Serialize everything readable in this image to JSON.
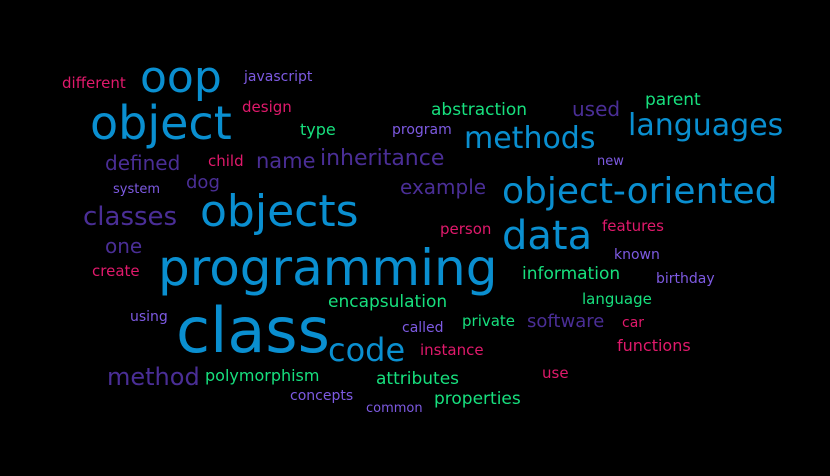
{
  "palette": {
    "background": "#000000",
    "blue": "#0a8fd0",
    "indigo": "#4a2e96",
    "green": "#17e07e",
    "pink": "#e0196b",
    "violet": "#7d5ae2"
  },
  "words": [
    {
      "text": "programming",
      "color": "blue"
    },
    {
      "text": "class",
      "color": "blue"
    },
    {
      "text": "objects",
      "color": "blue"
    },
    {
      "text": "object",
      "color": "blue"
    },
    {
      "text": "data",
      "color": "blue"
    },
    {
      "text": "oop",
      "color": "blue"
    },
    {
      "text": "object-oriented",
      "color": "blue"
    },
    {
      "text": "code",
      "color": "blue"
    },
    {
      "text": "methods",
      "color": "blue"
    },
    {
      "text": "languages",
      "color": "blue"
    },
    {
      "text": "classes",
      "color": "indigo"
    },
    {
      "text": "method",
      "color": "indigo"
    },
    {
      "text": "inheritance",
      "color": "indigo"
    },
    {
      "text": "name",
      "color": "indigo"
    },
    {
      "text": "defined",
      "color": "indigo"
    },
    {
      "text": "example",
      "color": "indigo"
    },
    {
      "text": "one",
      "color": "indigo"
    },
    {
      "text": "software",
      "color": "indigo"
    },
    {
      "text": "used",
      "color": "indigo"
    },
    {
      "text": "dog",
      "color": "indigo"
    },
    {
      "text": "abstraction",
      "color": "green"
    },
    {
      "text": "parent",
      "color": "green"
    },
    {
      "text": "type",
      "color": "green"
    },
    {
      "text": "information",
      "color": "green"
    },
    {
      "text": "language",
      "color": "green"
    },
    {
      "text": "encapsulation",
      "color": "green"
    },
    {
      "text": "private",
      "color": "green"
    },
    {
      "text": "polymorphism",
      "color": "green"
    },
    {
      "text": "attributes",
      "color": "green"
    },
    {
      "text": "properties",
      "color": "green"
    },
    {
      "text": "different",
      "color": "pink"
    },
    {
      "text": "design",
      "color": "pink"
    },
    {
      "text": "child",
      "color": "pink"
    },
    {
      "text": "person",
      "color": "pink"
    },
    {
      "text": "features",
      "color": "pink"
    },
    {
      "text": "create",
      "color": "pink"
    },
    {
      "text": "car",
      "color": "pink"
    },
    {
      "text": "functions",
      "color": "pink"
    },
    {
      "text": "instance",
      "color": "pink"
    },
    {
      "text": "use",
      "color": "pink"
    },
    {
      "text": "javascript",
      "color": "violet"
    },
    {
      "text": "program",
      "color": "violet"
    },
    {
      "text": "new",
      "color": "violet"
    },
    {
      "text": "system",
      "color": "violet"
    },
    {
      "text": "known",
      "color": "violet"
    },
    {
      "text": "birthday",
      "color": "violet"
    },
    {
      "text": "using",
      "color": "violet"
    },
    {
      "text": "called",
      "color": "violet"
    },
    {
      "text": "concepts",
      "color": "violet"
    },
    {
      "text": "common",
      "color": "violet"
    }
  ]
}
